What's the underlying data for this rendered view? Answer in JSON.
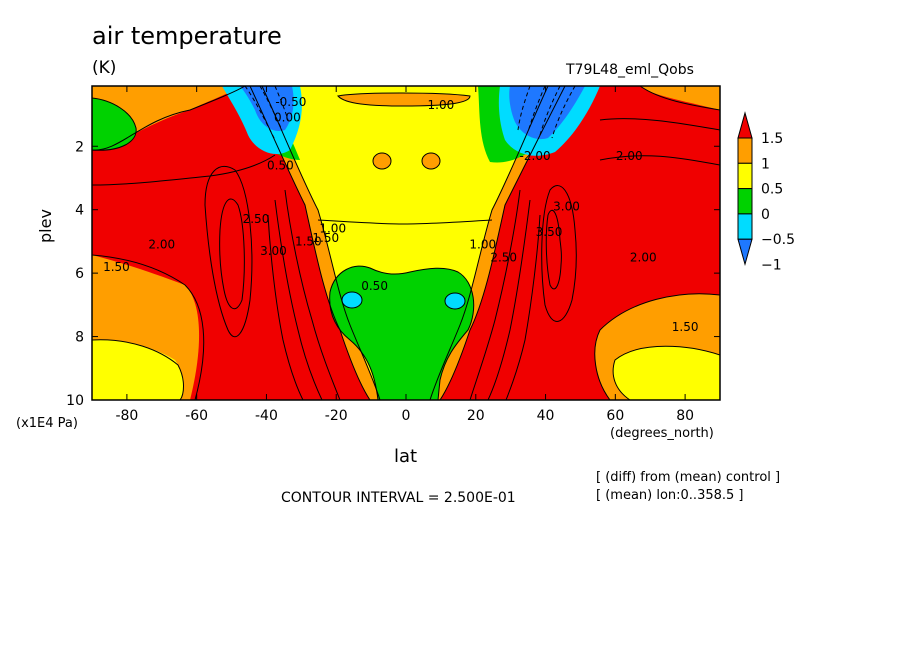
{
  "figure": {
    "title": "air temperature",
    "units": "(K)",
    "run_label": "T79L48_eml_Qobs",
    "ylabel": "plev",
    "yscale_label": "(x1E4 Pa)",
    "xunit_label": "(degrees_north)",
    "xlabel": "lat",
    "contour_interval": "CONTOUR INTERVAL = 2.500E-01",
    "note_diff": "[ (diff) from (mean) control ]",
    "note_mean": "[ (mean) lon:0..358.5 ]"
  },
  "chart_data": {
    "type": "heatmap",
    "x_ticks": [
      -80,
      -60,
      -40,
      -20,
      0,
      20,
      40,
      60,
      80
    ],
    "x_tick_labels": [
      "-80",
      "-60",
      "-40",
      "-20",
      "0",
      "20",
      "40",
      "60",
      "80"
    ],
    "y_ticks": [
      2,
      4,
      6,
      8,
      10
    ],
    "y_tick_labels": [
      "2",
      "4",
      "6",
      "8",
      "10"
    ],
    "xlim": [
      -90,
      90
    ],
    "ylim": [
      10,
      0.1
    ],
    "y_inverted": true,
    "colorbar": {
      "levels": [
        -1,
        -0.5,
        0,
        0.5,
        1,
        1.5
      ],
      "level_labels": [
        "−1",
        "−0.5",
        "0",
        "0.5",
        "1",
        "1.5"
      ],
      "colors": [
        "#1e78ff",
        "#00dcff",
        "#00d200",
        "#ffff00",
        "#ff9e00",
        "#f00000"
      ],
      "extends": "both"
    },
    "contour_labels": [
      {
        "text": "1.00",
        "lat": 10,
        "plev": 0.7
      },
      {
        "text": "0.00",
        "lat": -34,
        "plev": 1.1
      },
      {
        "text": "-0.50",
        "lat": -33,
        "plev": 0.6
      },
      {
        "text": "0.50",
        "lat": -36,
        "plev": 2.6
      },
      {
        "text": "-2.00",
        "lat": 37,
        "plev": 2.3
      },
      {
        "text": "2.00",
        "lat": 64,
        "plev": 2.3
      },
      {
        "text": "2.50",
        "lat": -43,
        "plev": 4.3
      },
      {
        "text": "2.00",
        "lat": -70,
        "plev": 5.1
      },
      {
        "text": "1.50",
        "lat": -83,
        "plev": 5.8
      },
      {
        "text": "3.00",
        "lat": -38,
        "plev": 5.3
      },
      {
        "text": "1.50",
        "lat": -28,
        "plev": 5.0
      },
      {
        "text": "1.50",
        "lat": -23,
        "plev": 4.9
      },
      {
        "text": "1.00",
        "lat": -21,
        "plev": 4.6
      },
      {
        "text": "0.50",
        "lat": -9,
        "plev": 6.4
      },
      {
        "text": "1.00",
        "lat": 22,
        "plev": 5.1
      },
      {
        "text": "2.50",
        "lat": 28,
        "plev": 5.5
      },
      {
        "text": "3.50",
        "lat": 41,
        "plev": 4.7
      },
      {
        "text": "3.00",
        "lat": 46,
        "plev": 3.9
      },
      {
        "text": "2.00",
        "lat": 68,
        "plev": 5.5
      },
      {
        "text": "1.50",
        "lat": 80,
        "plev": 7.7
      }
    ]
  }
}
